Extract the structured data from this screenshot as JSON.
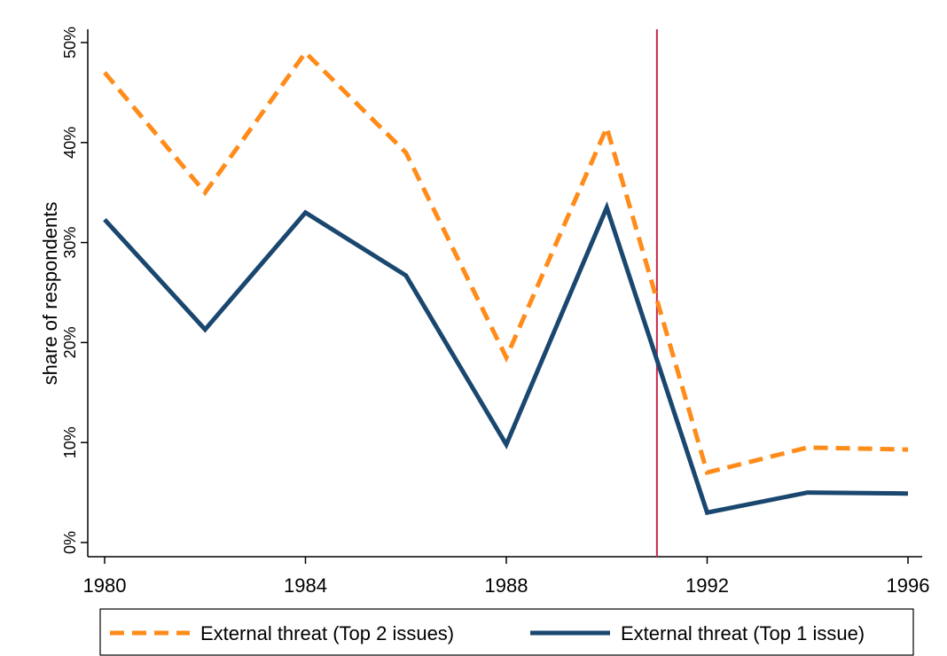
{
  "chart_data": {
    "type": "line",
    "ylabel": "share of respondents",
    "x": [
      1980,
      1982,
      1984,
      1986,
      1988,
      1990,
      1992,
      1994,
      1996
    ],
    "xlim": [
      1980,
      1996
    ],
    "ylim": [
      0,
      50
    ],
    "x_ticks": [
      1980,
      1984,
      1988,
      1992,
      1996
    ],
    "x_tick_labels": [
      "1980",
      "1984",
      "1988",
      "1992",
      "1996"
    ],
    "y_ticks": [
      0,
      10,
      20,
      30,
      40,
      50
    ],
    "y_tick_labels": [
      "0%",
      "10%",
      "20%",
      "30%",
      "40%",
      "50%"
    ],
    "grid": false,
    "legend_position": "bottom",
    "reference_line": {
      "x": 1991,
      "color": "#c8284b"
    },
    "series": [
      {
        "name": "External threat (Top 2 issues)",
        "values": [
          47,
          35,
          49,
          39,
          18.5,
          41.5,
          7,
          9.5,
          9.3
        ],
        "color": "#ff8c1a",
        "style": "dashed"
      },
      {
        "name": "External threat (Top 1 issue)",
        "values": [
          32.3,
          21.3,
          33,
          26.7,
          9.8,
          33.5,
          3,
          5,
          4.9
        ],
        "color": "#1a476f",
        "style": "solid"
      }
    ]
  }
}
